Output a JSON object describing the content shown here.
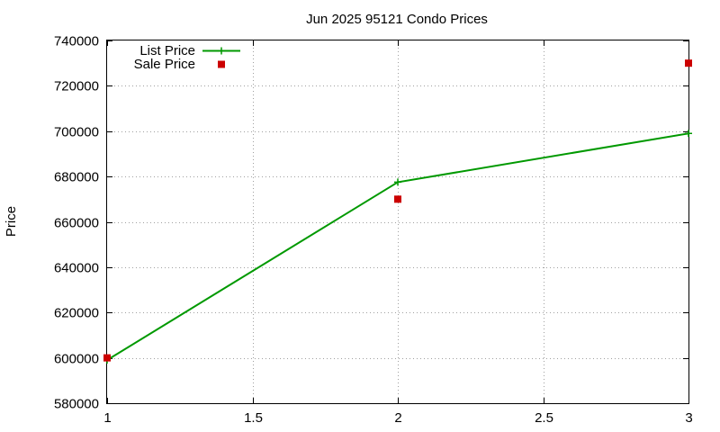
{
  "chart_data": {
    "type": "line",
    "title": "Jun 2025 95121 Condo Prices",
    "xlabel": "",
    "ylabel": "Price",
    "xlim": [
      1,
      3
    ],
    "ylim": [
      580000,
      740000
    ],
    "x_ticks": [
      1,
      1.5,
      2,
      2.5,
      3
    ],
    "x_tick_labels": [
      "1",
      "1.5",
      "2",
      "2.5",
      "3"
    ],
    "y_ticks": [
      580000,
      600000,
      620000,
      640000,
      660000,
      680000,
      700000,
      720000,
      740000
    ],
    "y_tick_labels": [
      "580000",
      "600000",
      "620000",
      "640000",
      "660000",
      "680000",
      "700000",
      "720000",
      "740000"
    ],
    "grid": true,
    "legend_position": "top-left",
    "series": [
      {
        "name": "List Price",
        "style": "line-with-plus-markers",
        "color": "#009900",
        "x": [
          1,
          2,
          3
        ],
        "y": [
          599000,
          677500,
          699000
        ]
      },
      {
        "name": "Sale Price",
        "style": "square-markers",
        "color": "#cc0000",
        "x": [
          1,
          2,
          3
        ],
        "y": [
          600000,
          670000,
          730000
        ]
      }
    ]
  }
}
